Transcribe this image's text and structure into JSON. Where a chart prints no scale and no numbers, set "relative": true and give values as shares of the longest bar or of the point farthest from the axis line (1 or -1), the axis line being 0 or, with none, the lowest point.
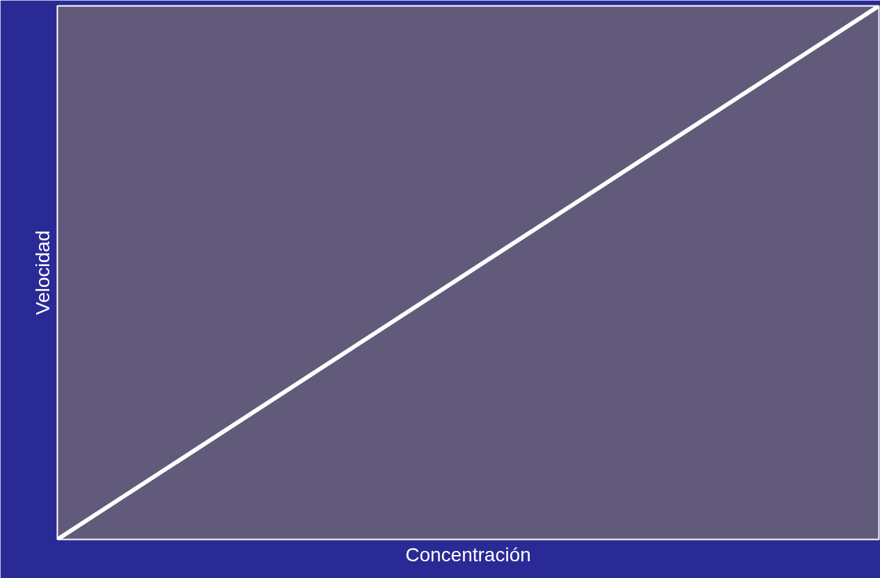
{
  "chart_data": {
    "type": "line",
    "relative": true,
    "xlabel": "Concentración",
    "ylabel": "Velocidad",
    "categories": [
      null,
      null
    ],
    "series": [
      {
        "color": "#ffffff",
        "values": [
          0,
          1
        ]
      }
    ]
  }
}
